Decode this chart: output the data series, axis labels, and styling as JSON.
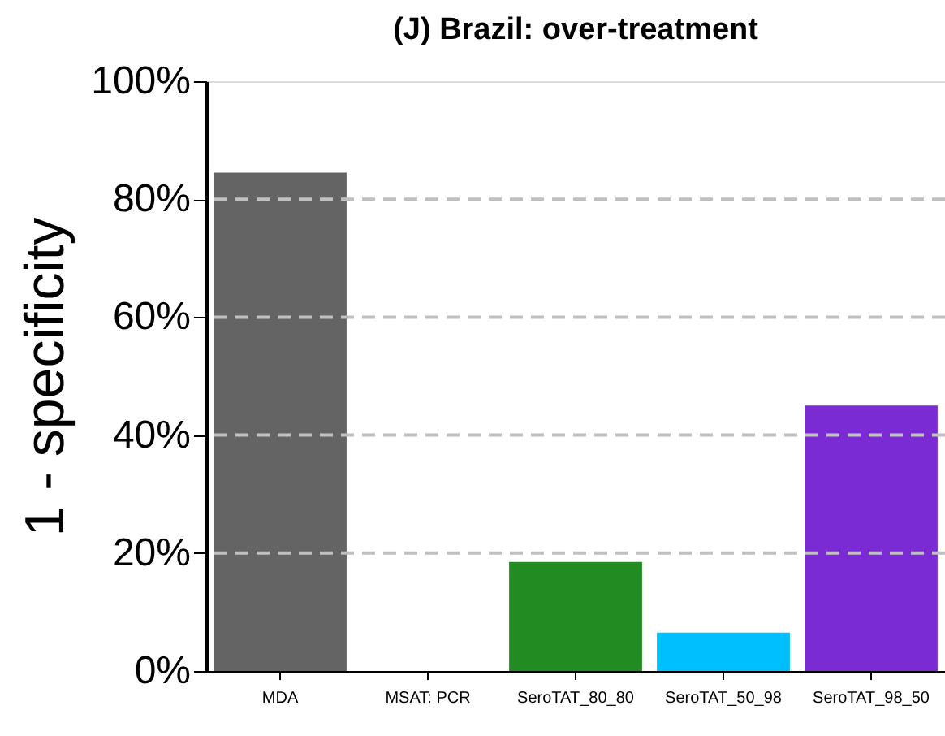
{
  "chart_data": {
    "type": "bar",
    "title": "(J) Brazil: over-treatment",
    "ylabel": "1 - specificity",
    "categories": [
      "MDA",
      "MSAT: PCR",
      "SeroTAT_80_80",
      "SeroTAT_50_98",
      "SeroTAT_98_50"
    ],
    "values": [
      84.5,
      0,
      18.5,
      6.5,
      45
    ],
    "colors": [
      "#646464",
      "#646464",
      "#228b22",
      "#00bfff",
      "#7b2bd3"
    ],
    "ylim": [
      0,
      100
    ],
    "yticks": [
      {
        "value": 0,
        "label": "0%"
      },
      {
        "value": 20,
        "label": "20%"
      },
      {
        "value": 40,
        "label": "40%"
      },
      {
        "value": 60,
        "label": "60%"
      },
      {
        "value": 80,
        "label": "80%"
      },
      {
        "value": 100,
        "label": "100%"
      }
    ],
    "ref_lines": [
      {
        "axis": "y",
        "value": 20,
        "color": "#c0c0c0",
        "line_style": "dashed"
      },
      {
        "axis": "y",
        "value": 40,
        "color": "#c0c0c0",
        "line_style": "dashed"
      },
      {
        "axis": "y",
        "value": 60,
        "color": "#c0c0c0",
        "line_style": "dashed"
      },
      {
        "axis": "y",
        "value": 80,
        "color": "#c0c0c0",
        "line_style": "dashed"
      }
    ],
    "grid": false
  }
}
